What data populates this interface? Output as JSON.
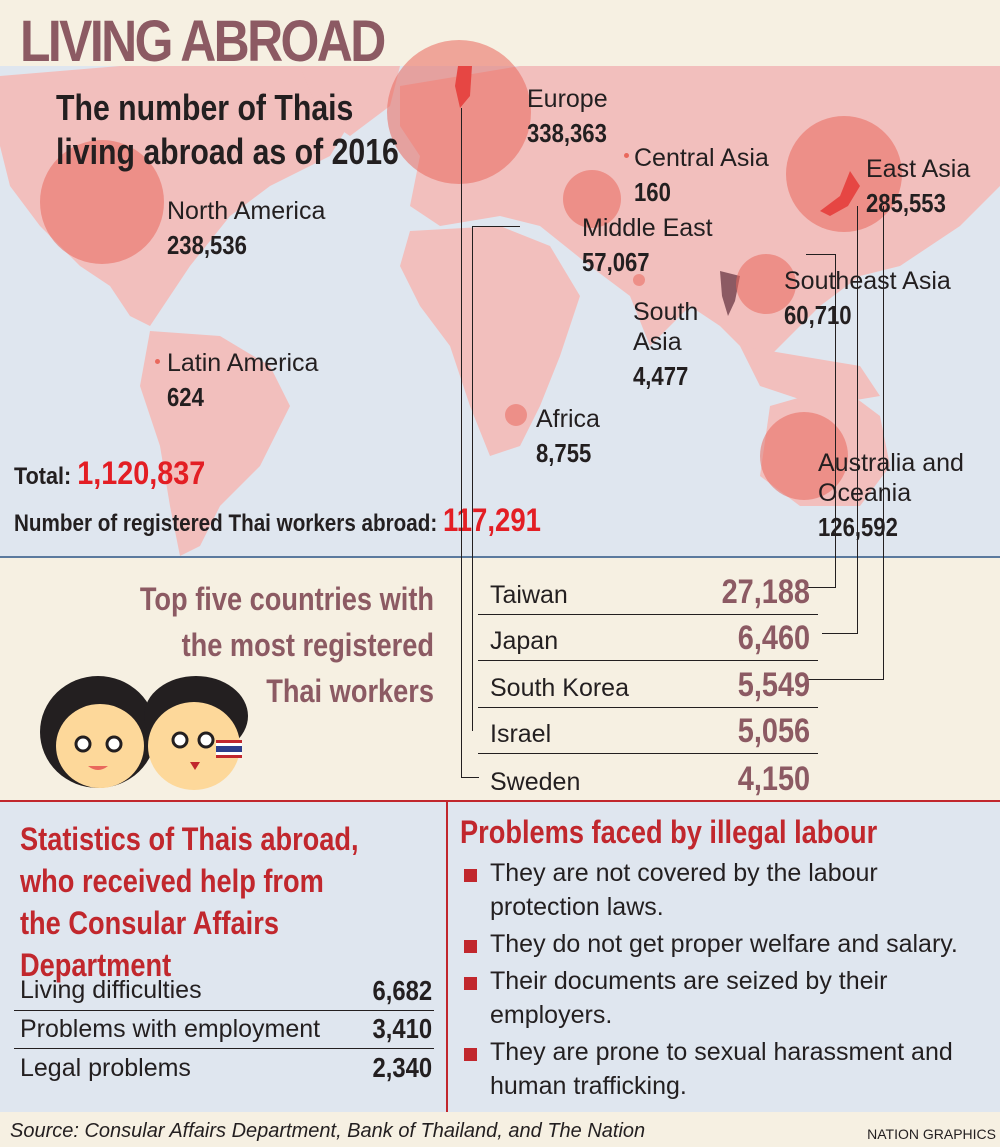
{
  "title": "LIVING ABROAD",
  "subtitle": [
    "The number of Thais",
    "living abroad as of 2016"
  ],
  "regions": [
    {
      "name": "Europe",
      "value": "338,363"
    },
    {
      "name": "Central Asia",
      "value": "160"
    },
    {
      "name": "East Asia",
      "value": "285,553"
    },
    {
      "name": "North America",
      "value": "238,536"
    },
    {
      "name": "Middle East",
      "value": "57,067"
    },
    {
      "name": "Southeast Asia",
      "value": "60,710"
    },
    {
      "name": "South Asia",
      "value": "4,477"
    },
    {
      "name": "Latin America",
      "value": "624"
    },
    {
      "name": "Africa",
      "value": "8,755"
    },
    {
      "name": "Australia and Oceania",
      "value": "126,592"
    }
  ],
  "total": {
    "label": "Total:",
    "value": "1,120,837"
  },
  "workers": {
    "label": "Number of registered Thai workers abroad:",
    "value": "117,291"
  },
  "top5": {
    "title": [
      "Top five countries with",
      "the most registered",
      "Thai workers"
    ],
    "rows": [
      {
        "country": "Taiwan",
        "count": "27,188"
      },
      {
        "country": "Japan",
        "count": "6,460"
      },
      {
        "country": "South Korea",
        "count": "5,549"
      },
      {
        "country": "Israel",
        "count": "5,056"
      },
      {
        "country": "Sweden",
        "count": "4,150"
      }
    ]
  },
  "stats": {
    "title": [
      "Statistics of Thais abroad,",
      "who received help from",
      "the Consular Affairs",
      "Department"
    ],
    "rows": [
      {
        "label": "Living difficulties",
        "count": "6,682"
      },
      {
        "label": "Problems with employment",
        "count": "3,410"
      },
      {
        "label": "Legal problems",
        "count": "2,340"
      }
    ]
  },
  "problems": {
    "title": "Problems faced by illegal labour",
    "items": [
      "They are not covered by the labour protection laws.",
      "They do not get proper welfare and salary.",
      "Their documents are seized by their employers.",
      "They are prone to sexual harassment and human trafficking."
    ]
  },
  "source": "Source: Consular Affairs Department, Bank of Thailand, and The Nation",
  "credit": "NATION GRAPHICS",
  "colors": {
    "bubble": "#e9685c",
    "accent": "#c1272d",
    "title": "#8c5a63",
    "highlight": "#e31e24"
  }
}
